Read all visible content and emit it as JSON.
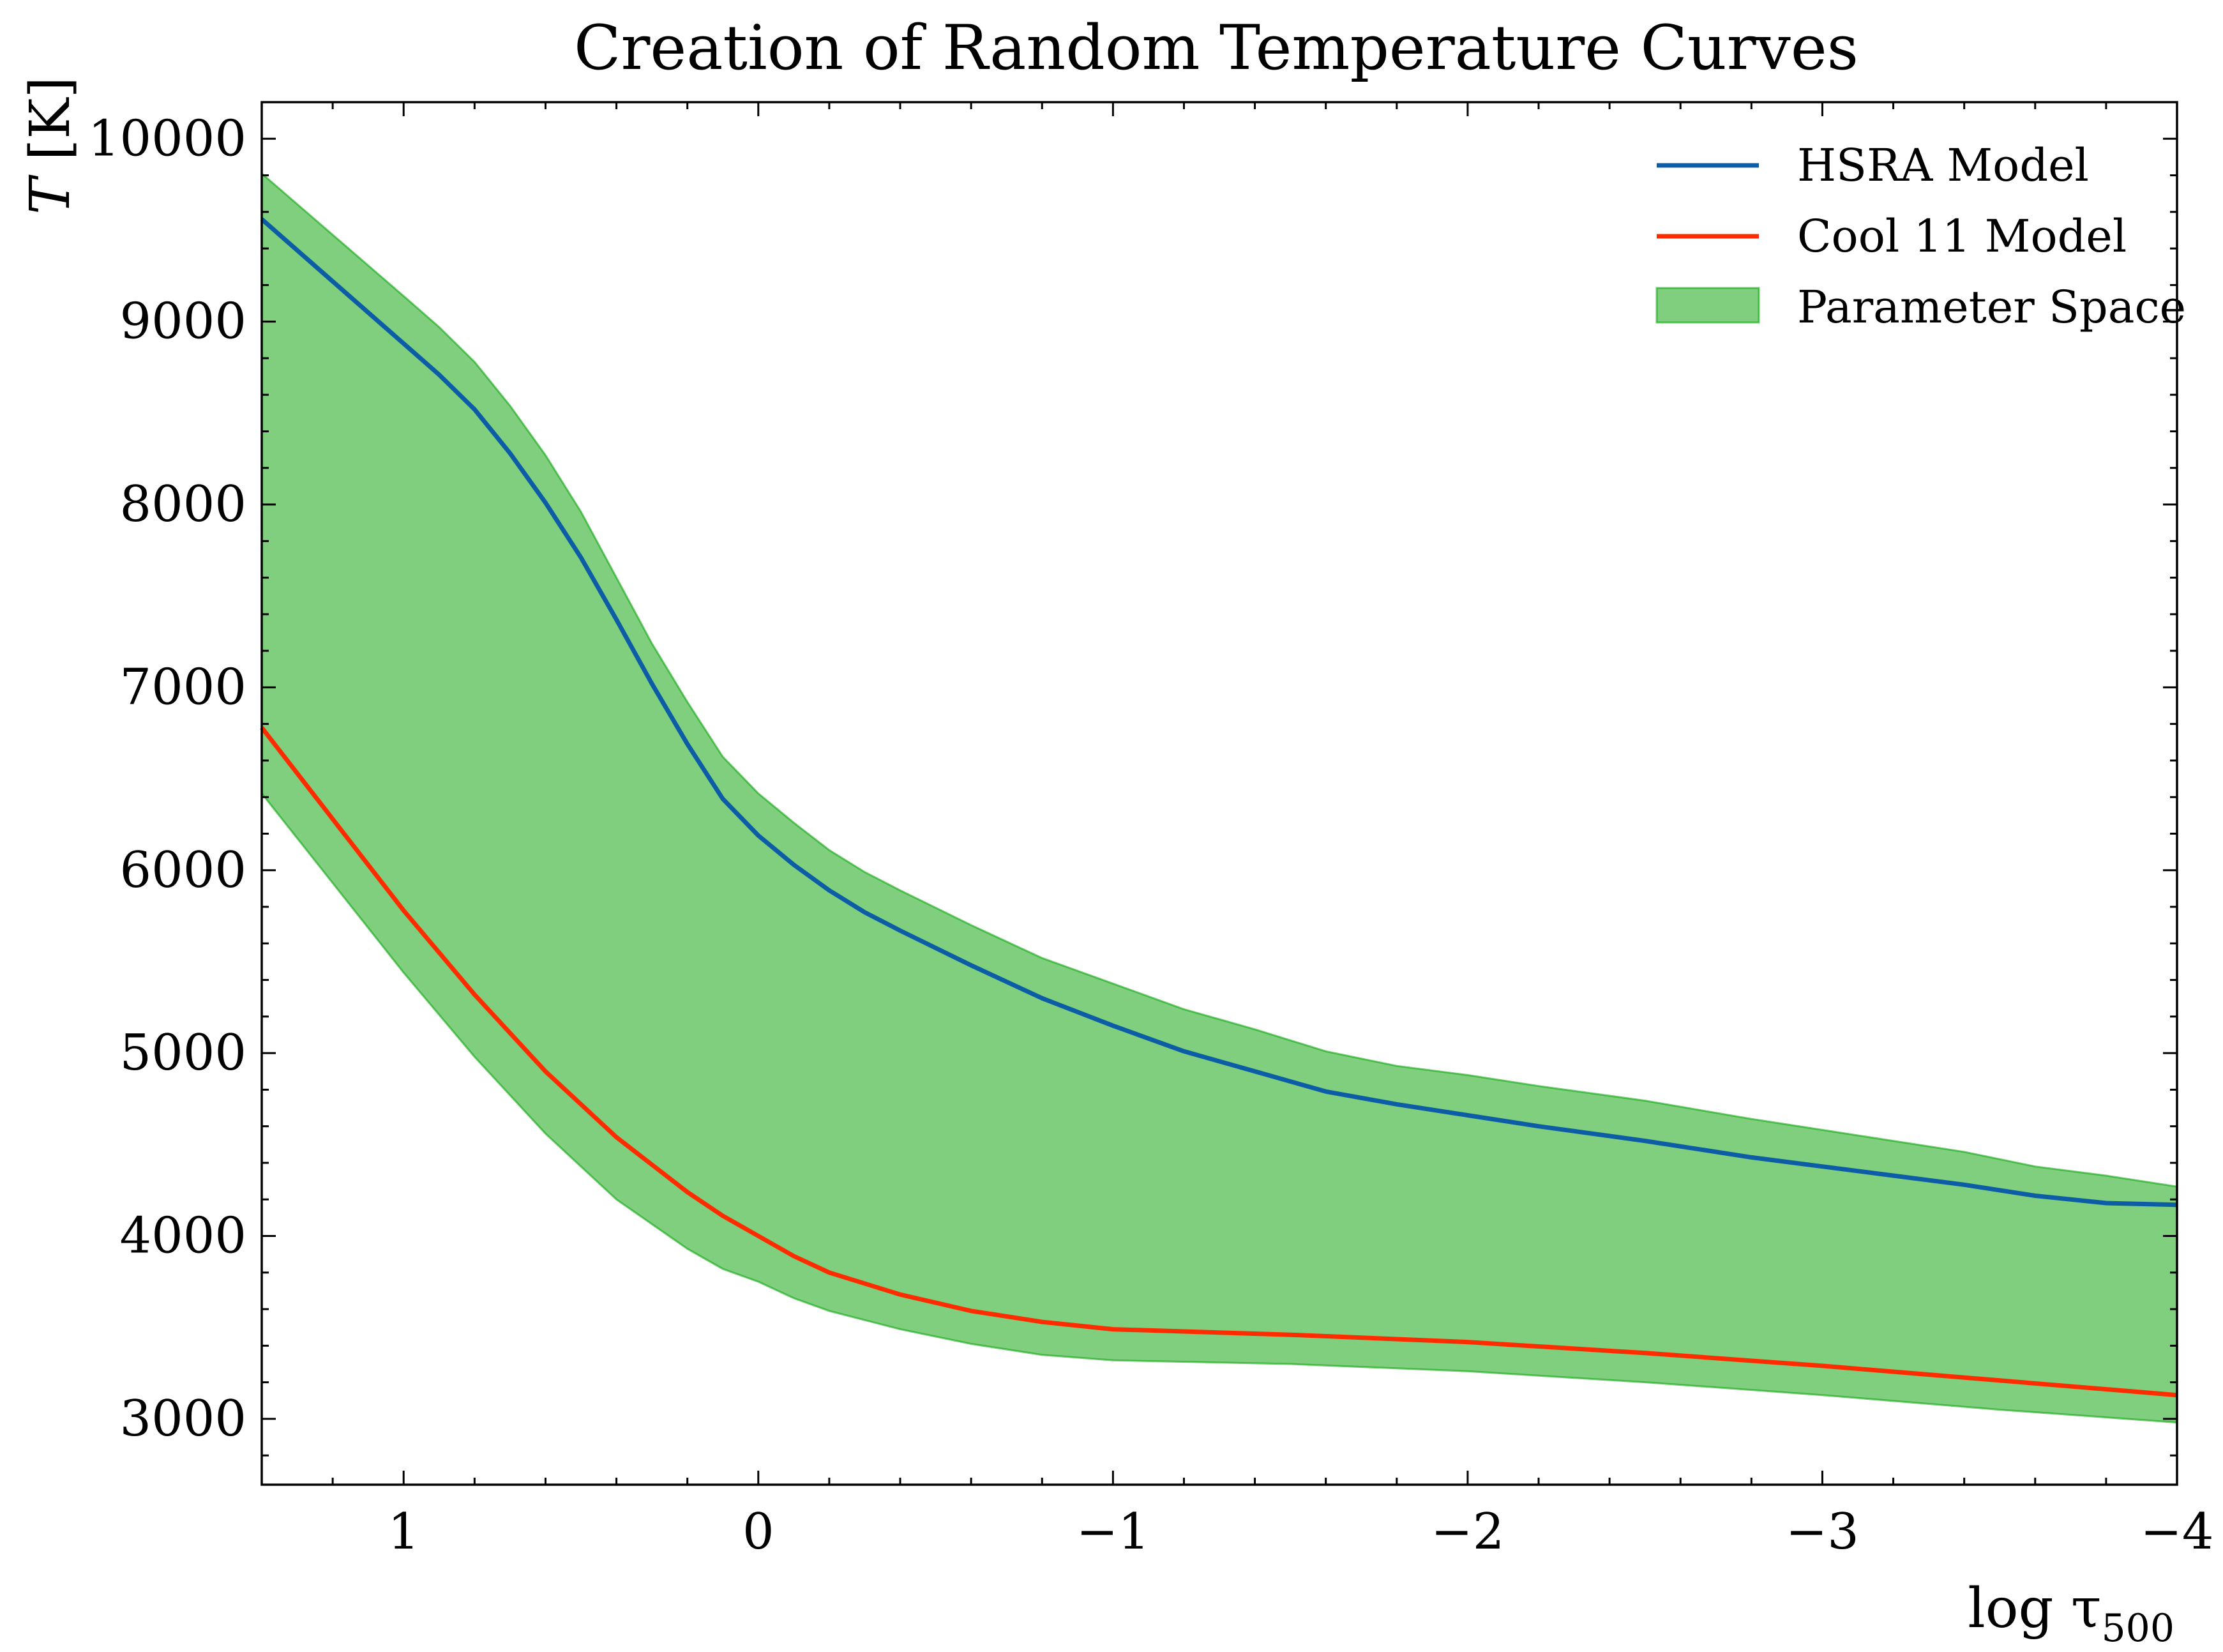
{
  "chart_data": {
    "type": "line",
    "title": "Creation of Random Temperature Curves",
    "xlabel": "log τ",
    "xlabel_sub": "500",
    "ylabel_italic": "T",
    "ylabel_rest": " [K]",
    "xlim": [
      1.4,
      -4.0
    ],
    "ylim": [
      2640,
      10200
    ],
    "x_ticks": [
      1,
      0,
      -1,
      -2,
      -3,
      -4
    ],
    "x_tick_labels": [
      "1",
      "0",
      "−1",
      "−2",
      "−3",
      "−4"
    ],
    "y_ticks": [
      3000,
      4000,
      5000,
      6000,
      7000,
      8000,
      9000,
      10000
    ],
    "y_tick_labels": [
      "3000",
      "4000",
      "5000",
      "6000",
      "7000",
      "8000",
      "9000",
      "10000"
    ],
    "grid": false,
    "legend_position": "top-right",
    "series": [
      {
        "name": "HSRA Model",
        "color": "#0c5da5",
        "x": [
          1.4,
          1.0,
          0.9,
          0.8,
          0.7,
          0.6,
          0.5,
          0.4,
          0.3,
          0.2,
          0.1,
          0.0,
          -0.1,
          -0.2,
          -0.3,
          -0.4,
          -0.6,
          -0.8,
          -1.0,
          -1.2,
          -1.4,
          -1.6,
          -1.8,
          -2.0,
          -2.2,
          -2.5,
          -2.8,
          -3.0,
          -3.2,
          -3.4,
          -3.6,
          -3.8,
          -4.0
        ],
        "y": [
          9560,
          8880,
          8710,
          8520,
          8280,
          8010,
          7710,
          7370,
          7020,
          6690,
          6390,
          6190,
          6030,
          5890,
          5770,
          5670,
          5480,
          5300,
          5150,
          5010,
          4900,
          4790,
          4720,
          4660,
          4600,
          4520,
          4430,
          4380,
          4330,
          4280,
          4220,
          4180,
          4170
        ]
      },
      {
        "name": "Cool 11 Model",
        "color": "#ff2c00",
        "x": [
          1.4,
          1.2,
          1.0,
          0.8,
          0.6,
          0.4,
          0.2,
          0.1,
          0.0,
          -0.1,
          -0.2,
          -0.4,
          -0.6,
          -0.8,
          -1.0,
          -1.5,
          -2.0,
          -2.5,
          -3.0,
          -3.5,
          -4.0
        ],
        "y": [
          6780,
          6280,
          5780,
          5320,
          4900,
          4540,
          4240,
          4110,
          4000,
          3890,
          3800,
          3680,
          3590,
          3530,
          3490,
          3460,
          3420,
          3360,
          3290,
          3210,
          3130
        ]
      }
    ],
    "band": {
      "name": "Parameter Space",
      "color": "#00a000",
      "x_upper": [
        1.4,
        1.0,
        0.9,
        0.8,
        0.7,
        0.6,
        0.5,
        0.4,
        0.3,
        0.2,
        0.1,
        0.0,
        -0.1,
        -0.2,
        -0.3,
        -0.4,
        -0.6,
        -0.8,
        -1.0,
        -1.2,
        -1.4,
        -1.6,
        -1.8,
        -2.0,
        -2.2,
        -2.5,
        -2.8,
        -3.0,
        -3.2,
        -3.4,
        -3.6,
        -3.8,
        -4.0
      ],
      "upper": [
        9810,
        9140,
        8970,
        8780,
        8540,
        8270,
        7960,
        7600,
        7240,
        6920,
        6620,
        6420,
        6260,
        6110,
        5990,
        5890,
        5700,
        5520,
        5380,
        5240,
        5130,
        5010,
        4930,
        4880,
        4820,
        4740,
        4640,
        4580,
        4520,
        4460,
        4380,
        4330,
        4270
      ],
      "x_lower": [
        1.4,
        1.2,
        1.0,
        0.8,
        0.6,
        0.4,
        0.2,
        0.1,
        0.0,
        -0.1,
        -0.2,
        -0.4,
        -0.6,
        -0.8,
        -1.0,
        -1.5,
        -2.0,
        -2.5,
        -3.0,
        -3.5,
        -4.0
      ],
      "lower": [
        6420,
        5930,
        5440,
        4980,
        4560,
        4200,
        3930,
        3820,
        3750,
        3660,
        3590,
        3490,
        3410,
        3350,
        3320,
        3300,
        3260,
        3200,
        3130,
        3050,
        2980
      ]
    }
  }
}
